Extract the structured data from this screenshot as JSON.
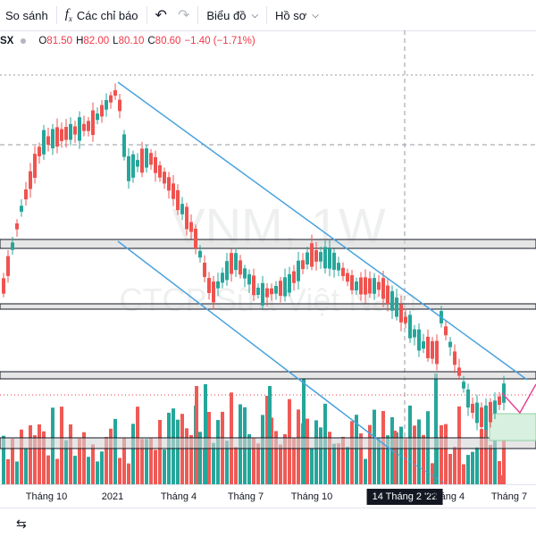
{
  "toolbar": {
    "compare_label": "So sánh",
    "indicators_label": "Các chỉ báo",
    "chart_label": "Biểu đồ",
    "profile_label": "Hồ sơ",
    "fx_icon": "fx-icon",
    "undo_icon": "undo-icon",
    "redo_icon": "redo-icon"
  },
  "legend": {
    "symbol": "SX",
    "o_label": "O",
    "o_value": "81.50",
    "h_label": "H",
    "h_value": "82.00",
    "l_label": "L",
    "l_value": "80.10",
    "c_label": "C",
    "c_value": "80.60",
    "change": "−1.40 (−1.71%)"
  },
  "watermark": {
    "symbol_interval": "VNM, 1W",
    "company": "CTCP Sữa Việt Nam"
  },
  "colors": {
    "up": "#26a69a",
    "down": "#ef5350",
    "volume_up": "#26a69a",
    "volume_down": "#f05a55",
    "trendline": "#4aa3df",
    "zone_border": "#131722",
    "zone_fill": "#d6d6d6",
    "projection": "#e84393",
    "target_box": "#d7f0df"
  },
  "time_axis": {
    "ticks": [
      "Tháng 10",
      "2021",
      "Tháng 4",
      "Tháng 7",
      "Tháng 10",
      "Tháng 4",
      "Tháng 7"
    ],
    "crosshair_label": "14 Tháng 2 '22"
  },
  "bottom": {
    "data_window_icon": "data-window-icon"
  }
}
